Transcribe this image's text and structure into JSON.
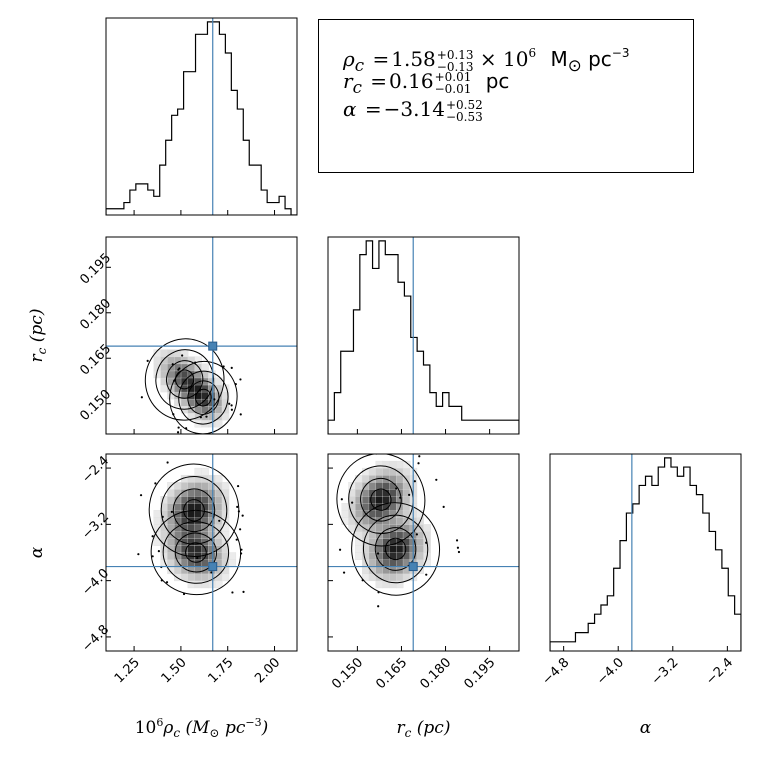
{
  "chart_data": {
    "type": "corner-plot",
    "parameters": [
      {
        "id": "rho",
        "label_prefix": "10",
        "label_exp": "6",
        "label_var": "ρ",
        "label_sub": "c",
        "label_unit": "M",
        "label_unit_sub": "⊙",
        "label_unit_rest": "pc",
        "label_unit_exp": "−3",
        "range": [
          1.1,
          2.12
        ],
        "ticks": [
          1.25,
          1.5,
          1.75,
          2.0
        ],
        "tick_labels": [
          "1.25",
          "1.50",
          "1.75",
          "2.00"
        ],
        "truth": 1.67
      },
      {
        "id": "rc",
        "label_var": "r",
        "label_sub": "c",
        "label_unit": "pc",
        "range": [
          0.14,
          0.205
        ],
        "ticks": [
          0.15,
          0.165,
          0.18,
          0.195
        ],
        "tick_labels": [
          "0.150",
          "0.165",
          "0.180",
          "0.195"
        ],
        "truth": 0.169
      },
      {
        "id": "alpha",
        "label_var": "α",
        "range": [
          -5.0,
          -2.2
        ],
        "ticks": [
          -4.8,
          -4.0,
          -3.2,
          -2.4
        ],
        "tick_labels": [
          "−4.8",
          "−4.0",
          "−3.2",
          "−2.4"
        ],
        "truth": -3.8
      }
    ],
    "marginals": {
      "rho": [
        1,
        1,
        1,
        2,
        4,
        5,
        5,
        4,
        3,
        8,
        12,
        16,
        17,
        23,
        23,
        29,
        29,
        31,
        31,
        29,
        26,
        20,
        17,
        12,
        8,
        8,
        4,
        2,
        2,
        3,
        1,
        0
      ],
      "rc": [
        1,
        3,
        6,
        6,
        9,
        13,
        14,
        12,
        14,
        13,
        13,
        11,
        10,
        7,
        6,
        5,
        3,
        2,
        3,
        2,
        2,
        1,
        1,
        1,
        1,
        1,
        1,
        1,
        1,
        1
      ],
      "alpha": [
        1,
        1,
        1,
        1,
        2,
        2,
        3,
        4,
        5,
        6,
        9,
        12,
        15,
        16,
        18,
        19,
        18,
        20,
        21,
        20,
        19,
        20,
        18,
        17,
        15,
        13,
        11,
        9,
        6,
        4
      ]
    },
    "summary": {
      "rho": {
        "symbol": "ρ",
        "sub": "c",
        "value": "1.58",
        "plus": "+0.13",
        "minus": "−0.13",
        "suffix": "× 10",
        "suffix_exp": "6",
        "unit": "M",
        "unit_sub": "⊙",
        "unit_rest": "pc",
        "unit_exp": "−3"
      },
      "rc": {
        "symbol": "r",
        "sub": "c",
        "value": "0.16",
        "plus": "+0.01",
        "minus": "−0.01",
        "unit": "pc"
      },
      "alpha": {
        "symbol": "α",
        "value": "−3.14",
        "plus": "+0.52",
        "minus": "−0.53"
      }
    }
  }
}
